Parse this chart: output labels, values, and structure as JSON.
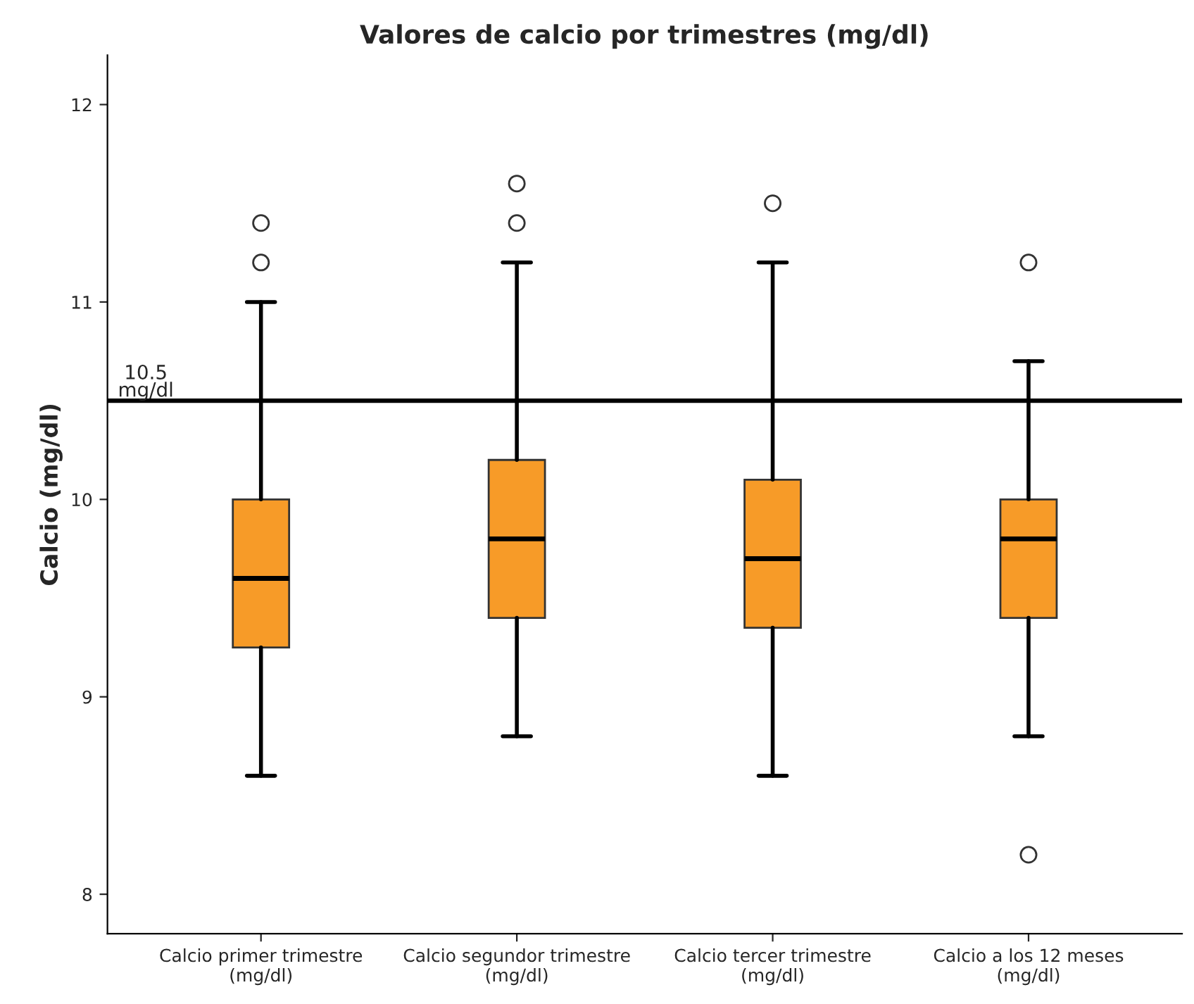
{
  "chart_data": {
    "type": "box",
    "title": "Valores de calcio por trimestres (mg/dl)",
    "ylabel": "Calcio (mg/dl)",
    "categories": [
      "Calcio primer trimestre\n(mg/dl)",
      "Calcio segundor trimestre\n(mg/dl)",
      "Calcio tercer trimestre\n(mg/dl)",
      "Calcio a los 12 meses\n(mg/dl)"
    ],
    "boxes": [
      {
        "low": 8.6,
        "q1": 9.25,
        "median": 9.6,
        "q3": 10.0,
        "high": 11.0,
        "outliers": [
          11.2,
          11.4
        ]
      },
      {
        "low": 8.8,
        "q1": 9.4,
        "median": 9.8,
        "q3": 10.2,
        "high": 11.2,
        "outliers": [
          11.4,
          11.6
        ]
      },
      {
        "low": 8.6,
        "q1": 9.35,
        "median": 9.7,
        "q3": 10.1,
        "high": 11.2,
        "outliers": [
          11.5
        ]
      },
      {
        "low": 8.8,
        "q1": 9.4,
        "median": 9.8,
        "q3": 10.0,
        "high": 10.7,
        "outliers": [
          11.2,
          8.2
        ]
      }
    ],
    "color": "#f79b28",
    "ylim": [
      7.8,
      12.25
    ],
    "yticks": [
      8,
      9,
      10,
      11,
      12
    ],
    "ref_lines": [
      {
        "axis": "y",
        "value": 10.5,
        "label": "10.5\nmg/dl",
        "color": "#000000"
      }
    ],
    "grid": false,
    "legend": false
  }
}
